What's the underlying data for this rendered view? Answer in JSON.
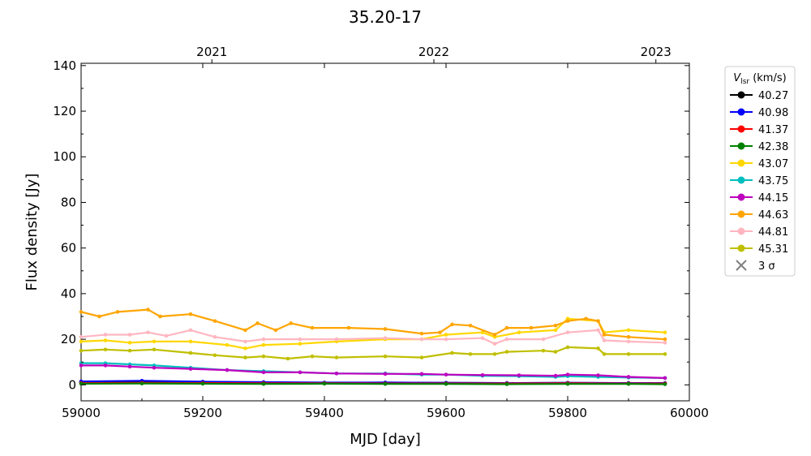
{
  "chart_data": {
    "type": "line",
    "title": "35.20-17",
    "xlabel": "MJD [day]",
    "ylabel": "Flux density [Jy]",
    "xlim": [
      59000,
      60000
    ],
    "ylim": [
      -7,
      141
    ],
    "xticks": [
      59000,
      59200,
      59400,
      59600,
      59800,
      60000
    ],
    "yticks": [
      0,
      20,
      40,
      60,
      80,
      100,
      120,
      140
    ],
    "top_axis": {
      "ticks": [
        {
          "label": "2021",
          "x": 59215
        },
        {
          "label": "2022",
          "x": 59580
        },
        {
          "label": "2023",
          "x": 59945
        }
      ]
    },
    "grid": false,
    "legend": {
      "title": "V_lsr (km/s)",
      "title_main": "V",
      "title_sub": "lsr",
      "title_rest": " (km/s)",
      "placement": "outside-right-top",
      "sigma_label": "3 σ"
    },
    "series": [
      {
        "name": "40.27",
        "color": "#000000",
        "x": [
          59000,
          59100,
          59200,
          59300,
          59400,
          59500,
          59600,
          59700,
          59800,
          59900,
          59960
        ],
        "y": [
          1.2,
          1.5,
          1.3,
          1.0,
          0.9,
          1.0,
          0.9,
          0.8,
          0.9,
          0.8,
          0.7
        ]
      },
      {
        "name": "40.98",
        "color": "#0000ff",
        "x": [
          59000,
          59100,
          59200,
          59300,
          59400,
          59500,
          59600,
          59700,
          59800,
          59900,
          59960
        ],
        "y": [
          1.5,
          1.8,
          1.4,
          1.2,
          1.0,
          1.0,
          0.9,
          0.8,
          0.9,
          0.8,
          0.8
        ]
      },
      {
        "name": "41.37",
        "color": "#ff0000",
        "x": [
          59000,
          59100,
          59200,
          59300,
          59400,
          59500,
          59600,
          59700,
          59800,
          59900,
          59960
        ],
        "y": [
          0.8,
          0.9,
          0.8,
          0.7,
          0.7,
          0.6,
          0.6,
          0.6,
          0.7,
          0.6,
          0.6
        ]
      },
      {
        "name": "42.38",
        "color": "#008000",
        "x": [
          59000,
          59100,
          59200,
          59300,
          59400,
          59500,
          59600,
          59700,
          59800,
          59900,
          59960
        ],
        "y": [
          0.5,
          0.6,
          0.5,
          0.4,
          0.5,
          0.4,
          0.4,
          0.3,
          0.4,
          0.4,
          0.3
        ]
      },
      {
        "name": "43.07",
        "color": "#ffd700",
        "x": [
          59000,
          59040,
          59080,
          59120,
          59180,
          59240,
          59270,
          59300,
          59360,
          59420,
          59500,
          59560,
          59600,
          59660,
          59680,
          59720,
          59780,
          59800,
          59850,
          59860,
          59900,
          59960
        ],
        "y": [
          19,
          19.5,
          18.5,
          19,
          19,
          17.5,
          16,
          17.5,
          18,
          19,
          20,
          20,
          22,
          23,
          21,
          23,
          24,
          29,
          28,
          23,
          24,
          23
        ]
      },
      {
        "name": "43.75",
        "color": "#00bfbf",
        "x": [
          59000,
          59040,
          59080,
          59120,
          59180,
          59240,
          59300,
          59360,
          59420,
          59500,
          59560,
          59600,
          59660,
          59720,
          59780,
          59800,
          59850,
          59900,
          59960
        ],
        "y": [
          9.5,
          9.5,
          9,
          8.5,
          7.5,
          6.5,
          6,
          5.5,
          5,
          5,
          4.5,
          4.5,
          4,
          3.8,
          3.5,
          3.8,
          3.5,
          3.2,
          3
        ]
      },
      {
        "name": "44.15",
        "color": "#bf00bf",
        "x": [
          59000,
          59040,
          59080,
          59120,
          59180,
          59240,
          59300,
          59360,
          59420,
          59500,
          59560,
          59600,
          59660,
          59720,
          59780,
          59800,
          59850,
          59900,
          59960
        ],
        "y": [
          8.5,
          8.5,
          8,
          7.5,
          7,
          6.5,
          5.5,
          5.5,
          5,
          4.8,
          4.8,
          4.5,
          4.3,
          4.2,
          4,
          4.5,
          4.2,
          3.5,
          3
        ]
      },
      {
        "name": "44.63",
        "color": "#ffa500",
        "x": [
          59000,
          59030,
          59060,
          59110,
          59130,
          59180,
          59220,
          59270,
          59290,
          59320,
          59345,
          59380,
          59440,
          59500,
          59560,
          59590,
          59610,
          59640,
          59680,
          59700,
          59740,
          59780,
          59800,
          59830,
          59850,
          59860,
          59900,
          59960
        ],
        "y": [
          32,
          30,
          32,
          33,
          30,
          31,
          28,
          24,
          27,
          24,
          27,
          25,
          25,
          24.5,
          22.5,
          23,
          26.5,
          26,
          22,
          25,
          25,
          26,
          28,
          29,
          28,
          22,
          21,
          20
        ]
      },
      {
        "name": "44.81",
        "color": "#ffb6c1",
        "x": [
          59000,
          59040,
          59080,
          59110,
          59140,
          59180,
          59220,
          59270,
          59300,
          59360,
          59420,
          59500,
          59560,
          59600,
          59660,
          59680,
          59700,
          59760,
          59800,
          59850,
          59860,
          59900,
          59960
        ],
        "y": [
          21,
          22,
          22,
          23,
          21.5,
          24,
          21,
          19,
          20,
          20,
          20,
          20.5,
          20,
          20,
          20.5,
          18,
          20,
          20,
          23,
          24,
          19.5,
          19,
          18.5
        ]
      },
      {
        "name": "45.31",
        "color": "#bfbf00",
        "x": [
          59000,
          59040,
          59080,
          59120,
          59180,
          59220,
          59270,
          59300,
          59340,
          59380,
          59420,
          59500,
          59560,
          59610,
          59640,
          59680,
          59700,
          59760,
          59780,
          59800,
          59850,
          59860,
          59900,
          59960
        ],
        "y": [
          15,
          15.5,
          15,
          15.5,
          14,
          13,
          12,
          12.5,
          11.5,
          12.5,
          12,
          12.5,
          12,
          14,
          13.5,
          13.5,
          14.5,
          15,
          14.5,
          16.5,
          16,
          13.5,
          13.5,
          13.5
        ]
      }
    ]
  }
}
